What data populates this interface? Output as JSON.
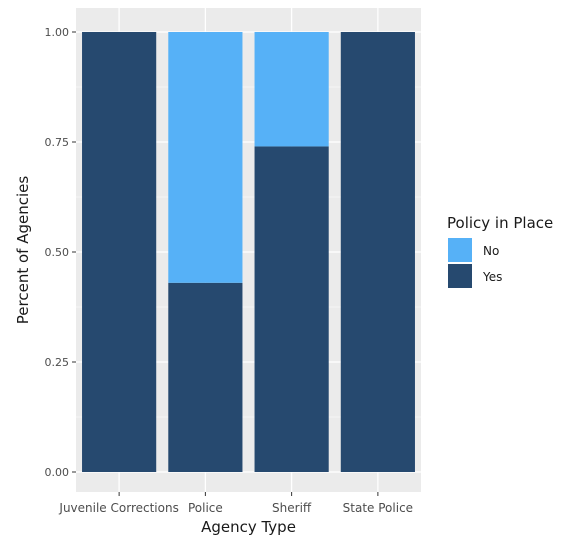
{
  "chart_data": {
    "type": "bar",
    "stacked": true,
    "categories": [
      "Juvenile Corrections",
      "Police",
      "Sheriff",
      "State Police"
    ],
    "series": [
      {
        "name": "Yes",
        "values": [
          1.0,
          0.43,
          0.74,
          1.0
        ],
        "color": "#26496f"
      },
      {
        "name": "No",
        "values": [
          0.0,
          0.57,
          0.26,
          0.0
        ],
        "color": "#56b1f7"
      }
    ],
    "xlabel": "Agency Type",
    "ylabel": "Percent of Agencies",
    "ylim": [
      0,
      1
    ],
    "yticks": [
      0,
      0.25,
      0.5,
      0.75,
      1
    ],
    "ytick_labels": [
      "0.00",
      "0.25",
      "0.50",
      "0.75",
      "1.00"
    ],
    "grid": true,
    "panel_background": "#ebebeb",
    "legend": {
      "title": "Policy in Place",
      "placement": "right",
      "entries": [
        {
          "label": "No",
          "color": "#56b1f7"
        },
        {
          "label": "Yes",
          "color": "#26496f"
        }
      ]
    }
  }
}
